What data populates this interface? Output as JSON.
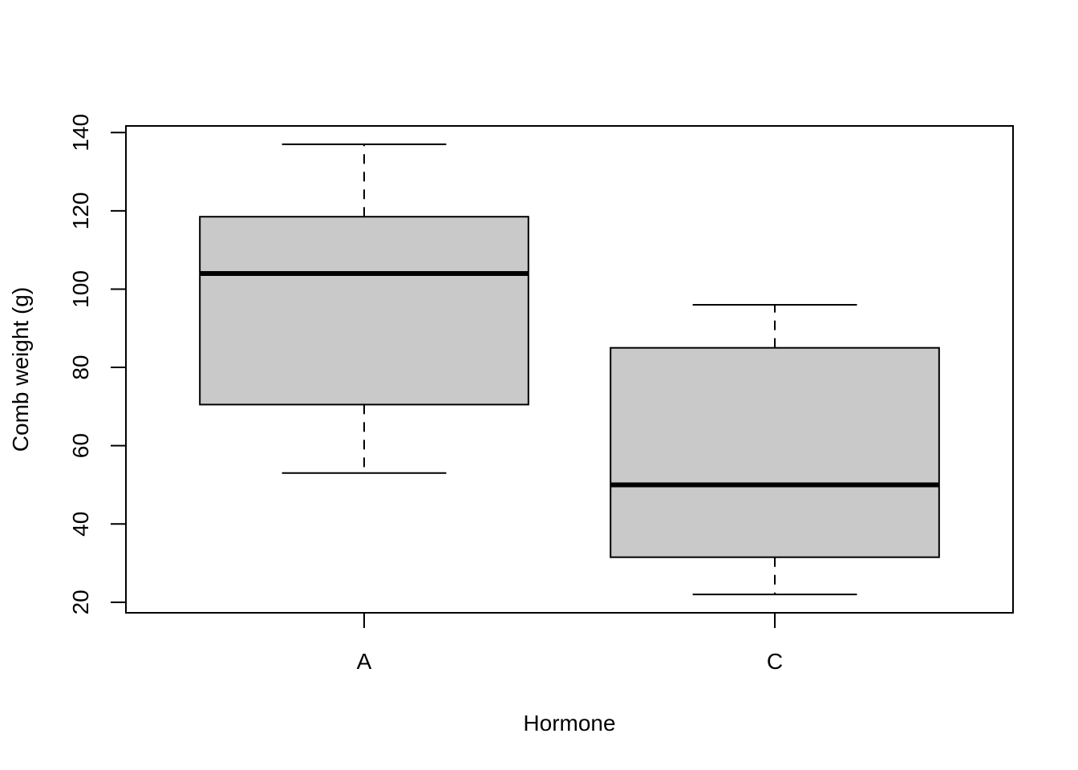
{
  "chart_data": {
    "type": "boxplot",
    "title": "",
    "xlabel": "Hormone",
    "ylabel": "Comb weight (g)",
    "ylim": [
      17.3,
      141.7
    ],
    "yticks": [
      20,
      40,
      60,
      80,
      100,
      120,
      140
    ],
    "grid": false,
    "legend": "none",
    "categories": [
      "A",
      "C"
    ],
    "boxes": [
      {
        "name": "A",
        "whisker_low": 53,
        "q1": 70.5,
        "median": 104,
        "q3": 118.5,
        "whisker_high": 137
      },
      {
        "name": "C",
        "whisker_low": 22,
        "q1": 31.5,
        "median": 50,
        "q3": 85,
        "whisker_high": 96
      }
    ]
  },
  "colors": {
    "box_fill": "#c9c9c9",
    "stroke": "#000000",
    "background": "#ffffff"
  }
}
